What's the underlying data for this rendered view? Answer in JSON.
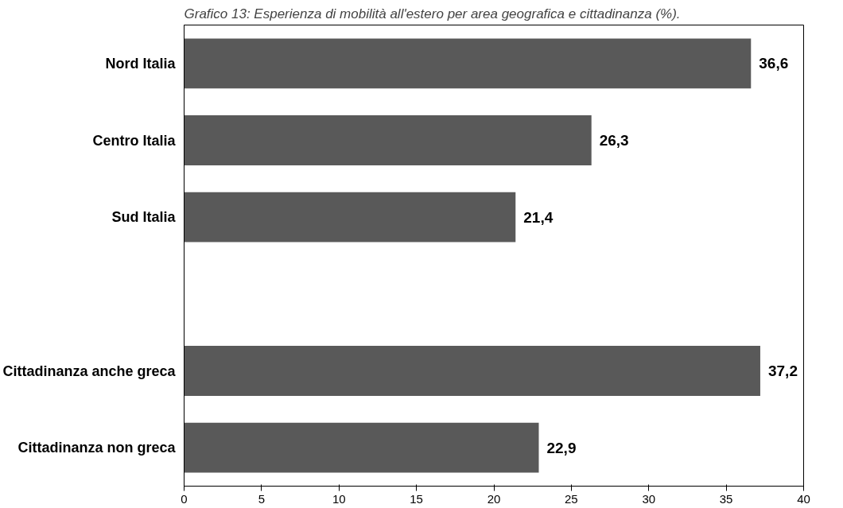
{
  "chart_data": {
    "type": "bar",
    "orientation": "horizontal",
    "title": "Grafico 13: Esperienza di mobilità all'estero per area geografica e cittadinanza (%).",
    "categories": [
      "Nord Italia",
      "Centro Italia",
      "Sud Italia",
      null,
      "Cittadinanza anche greca",
      "Cittadinanza non greca"
    ],
    "values": [
      36.6,
      26.3,
      21.4,
      null,
      37.2,
      22.9
    ],
    "value_labels": [
      "36,6",
      "26,3",
      "21,4",
      null,
      "37,2",
      "22,9"
    ],
    "color": "#595959",
    "xlim": [
      0,
      40
    ],
    "xticks": [
      0,
      5,
      10,
      15,
      20,
      25,
      30,
      35,
      40
    ],
    "grid": false
  }
}
